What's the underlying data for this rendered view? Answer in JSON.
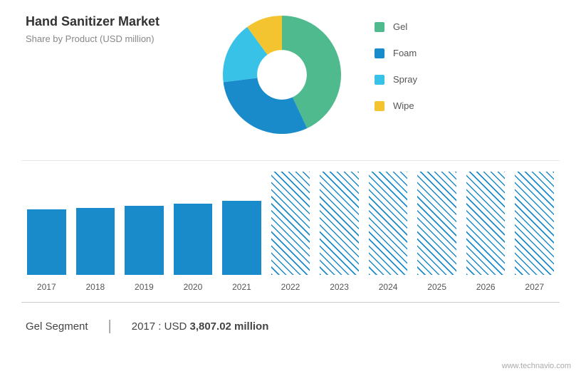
{
  "header": {
    "title": "Hand Sanitizer Market",
    "subtitle": "Share by Product (USD million)"
  },
  "donut": {
    "type": "donut",
    "size": 170,
    "inner_radius_pct": 42,
    "background": "#ffffff",
    "slices": [
      {
        "label": "Gel",
        "value": 43,
        "color": "#4fba8d"
      },
      {
        "label": "Foam",
        "value": 30,
        "color": "#1a8bca"
      },
      {
        "label": "Spray",
        "value": 17,
        "color": "#39c2e8"
      },
      {
        "label": "Wipe",
        "value": 10,
        "color": "#f4c430"
      }
    ]
  },
  "legend": {
    "items": [
      {
        "label": "Gel",
        "color": "#4fba8d"
      },
      {
        "label": "Foam",
        "color": "#1a8bca"
      },
      {
        "label": "Spray",
        "color": "#39c2e8"
      },
      {
        "label": "Wipe",
        "color": "#f4c430"
      }
    ],
    "fontsize": 13,
    "text_color": "#555555"
  },
  "bar_chart": {
    "type": "bar",
    "ylim": [
      0,
      150
    ],
    "solid_fill": "#1a8bca",
    "hatched_stroke": "#1a8bca",
    "hatched_bg": "#ffffff",
    "label_fontsize": 12,
    "label_color": "#555555",
    "bars": [
      {
        "year": "2017",
        "value": 92,
        "style": "solid"
      },
      {
        "year": "2018",
        "value": 94,
        "style": "solid"
      },
      {
        "year": "2019",
        "value": 97,
        "style": "solid"
      },
      {
        "year": "2020",
        "value": 100,
        "style": "solid"
      },
      {
        "year": "2021",
        "value": 104,
        "style": "solid"
      },
      {
        "year": "2022",
        "value": 145,
        "style": "hatched"
      },
      {
        "year": "2023",
        "value": 145,
        "style": "hatched"
      },
      {
        "year": "2024",
        "value": 145,
        "style": "hatched"
      },
      {
        "year": "2025",
        "value": 145,
        "style": "hatched"
      },
      {
        "year": "2026",
        "value": 145,
        "style": "hatched"
      },
      {
        "year": "2027",
        "value": 145,
        "style": "hatched"
      }
    ]
  },
  "footer": {
    "left": "Gel Segment",
    "divider": "|",
    "year": "2017 :",
    "currency": "USD",
    "value": "3,807.02 million"
  },
  "watermark": "www.technavio.com"
}
